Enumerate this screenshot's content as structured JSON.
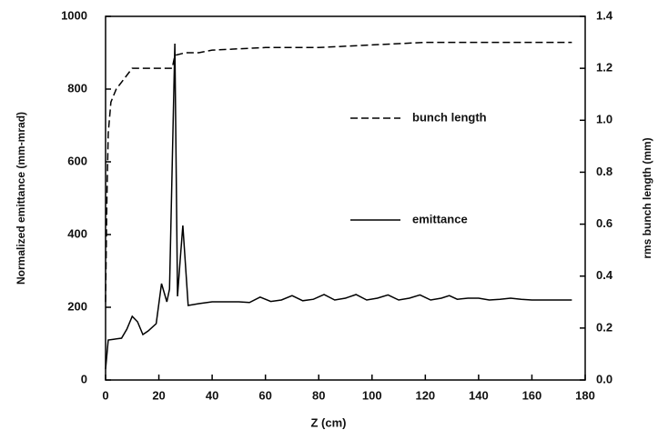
{
  "chart_data": {
    "type": "line",
    "xlabel": "Z (cm)",
    "ylabel": "Normalized emittance (mm-mrad)",
    "y2label": "rms bunch length (mm)",
    "xlim": [
      0,
      180
    ],
    "xticks": [
      0,
      20,
      40,
      60,
      80,
      100,
      120,
      140,
      160,
      180
    ],
    "ylim": [
      0,
      1000
    ],
    "yticks": [
      0,
      200,
      400,
      600,
      800,
      1000
    ],
    "y2lim": [
      0,
      1.4
    ],
    "y2ticks": [
      {
        "value": 0,
        "label": "0.0"
      },
      0.2,
      0.4,
      0.6,
      0.8,
      {
        "value": 1,
        "label": "1.0"
      },
      1.2,
      1.4
    ],
    "series": [
      {
        "name": "bunch length",
        "color": "#000000",
        "style": "dashed",
        "axis": "y2",
        "x": [
          0,
          0.5,
          1,
          2,
          4,
          7,
          10,
          15,
          20,
          25,
          26,
          30,
          35,
          40,
          60,
          80,
          100,
          120,
          145,
          175
        ],
        "values": [
          0.3,
          0.7,
          0.95,
          1.07,
          1.12,
          1.16,
          1.2,
          1.2,
          1.2,
          1.2,
          1.25,
          1.26,
          1.26,
          1.27,
          1.28,
          1.28,
          1.29,
          1.3,
          1.3,
          1.3
        ]
      },
      {
        "name": "emittance",
        "color": "#000000",
        "style": "solid",
        "axis": "y",
        "x": [
          0,
          1,
          3,
          6,
          8,
          10,
          12,
          14,
          16,
          19,
          21,
          23,
          24,
          26,
          27,
          28,
          29,
          31,
          35,
          40,
          45,
          50,
          54,
          58,
          62,
          66,
          70,
          74,
          78,
          82,
          86,
          90,
          94,
          98,
          102,
          106,
          110,
          114,
          118,
          122,
          126,
          129,
          132,
          136,
          140,
          144,
          148,
          152,
          156,
          160,
          165,
          170,
          175
        ],
        "values": [
          30,
          110,
          112,
          115,
          140,
          175,
          160,
          125,
          135,
          155,
          265,
          215,
          250,
          925,
          230,
          330,
          425,
          205,
          210,
          215,
          215,
          215,
          213,
          228,
          216,
          220,
          232,
          218,
          222,
          235,
          220,
          225,
          235,
          220,
          225,
          234,
          220,
          225,
          234,
          220,
          225,
          232,
          222,
          225,
          225,
          220,
          222,
          225,
          222,
          220,
          220,
          220,
          220
        ]
      }
    ]
  }
}
